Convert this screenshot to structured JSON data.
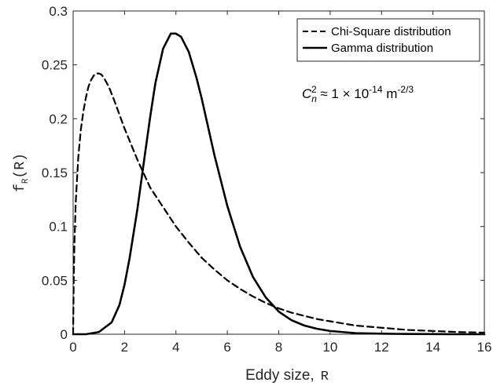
{
  "chart_data": {
    "type": "line",
    "xlabel_text": "Eddy size,",
    "xlabel_var": "R",
    "ylabel_f": "f",
    "ylabel_sub": "R",
    "ylabel_arg": "(R)",
    "xlim": [
      0,
      16
    ],
    "ylim": [
      0,
      0.3
    ],
    "xticks": [
      0,
      2,
      4,
      6,
      8,
      10,
      12,
      14,
      16
    ],
    "yticks": [
      0,
      0.05,
      0.1,
      0.15,
      0.2,
      0.25,
      0.3
    ],
    "ytick_labels": [
      "0",
      "0.05",
      "0.1",
      "0.15",
      "0.2",
      "0.25",
      "0.3"
    ],
    "grid": false,
    "legend_position": "top-right",
    "annotation": {
      "c": "C",
      "n": "n",
      "sq": "2",
      "mid": " ≈ 1 × 10",
      "exp1": "-14",
      "unit": " m",
      "exp2": "-2/3"
    },
    "series": [
      {
        "name": "Chi-Square distribution",
        "style": "dashed",
        "color": "#000000",
        "x": [
          0,
          0.02,
          0.05,
          0.1,
          0.2,
          0.3,
          0.4,
          0.5,
          0.6,
          0.7,
          0.8,
          0.9,
          1.0,
          1.1,
          1.2,
          1.4,
          1.6,
          1.8,
          2.0,
          2.5,
          3.0,
          3.5,
          4.0,
          4.5,
          5.0,
          5.5,
          6.0,
          6.5,
          7.0,
          7.5,
          8.0,
          8.5,
          9.0,
          9.5,
          10,
          11,
          12,
          13,
          14,
          15,
          16
        ],
        "y": [
          0,
          0.045,
          0.083,
          0.122,
          0.164,
          0.19,
          0.207,
          0.22,
          0.23,
          0.236,
          0.24,
          0.242,
          0.242,
          0.241,
          0.238,
          0.229,
          0.217,
          0.204,
          0.191,
          0.162,
          0.136,
          0.118,
          0.1,
          0.085,
          0.071,
          0.06,
          0.05,
          0.042,
          0.035,
          0.029,
          0.024,
          0.02,
          0.017,
          0.014,
          0.012,
          0.008,
          0.006,
          0.004,
          0.003,
          0.002,
          0.0015
        ]
      },
      {
        "name": "Gamma distribution",
        "style": "solid",
        "color": "#000000",
        "x": [
          0,
          0.5,
          1.0,
          1.5,
          1.8,
          2.0,
          2.2,
          2.5,
          2.8,
          3.0,
          3.2,
          3.5,
          3.8,
          4.0,
          4.2,
          4.5,
          4.8,
          5.0,
          5.5,
          6.0,
          6.5,
          7.0,
          7.5,
          8.0,
          8.5,
          9.0,
          9.5,
          10,
          10.5,
          11,
          12,
          13,
          14,
          15,
          16
        ],
        "y": [
          0,
          0.0,
          0.002,
          0.011,
          0.027,
          0.046,
          0.071,
          0.116,
          0.168,
          0.202,
          0.233,
          0.265,
          0.279,
          0.279,
          0.276,
          0.262,
          0.238,
          0.219,
          0.166,
          0.119,
          0.081,
          0.053,
          0.034,
          0.021,
          0.013,
          0.008,
          0.005,
          0.003,
          0.002,
          0.001,
          0.0005,
          0.0002,
          0.0001,
          0,
          0
        ]
      }
    ]
  }
}
